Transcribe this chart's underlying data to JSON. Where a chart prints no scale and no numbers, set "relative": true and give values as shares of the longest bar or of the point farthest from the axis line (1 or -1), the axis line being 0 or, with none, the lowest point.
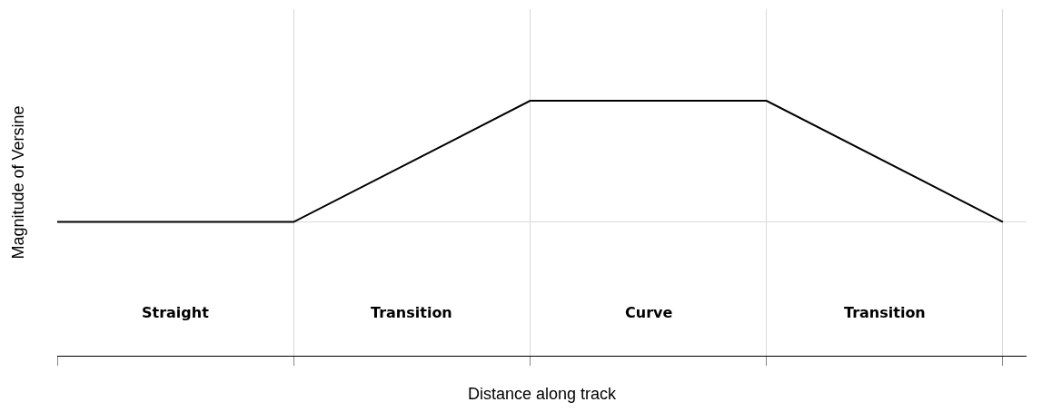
{
  "chart_data": {
    "type": "line",
    "relative": true,
    "xlabel": "Distance along track",
    "ylabel": "Magnitude of Versine",
    "categories": [
      null,
      null,
      null,
      null,
      null
    ],
    "series": [
      {
        "color": "#000000",
        "values": [
          0.525,
          0.525,
          1,
          1,
          0.525
        ]
      }
    ],
    "annotations": [
      "Straight",
      "Transition",
      "Curve",
      "Transition"
    ],
    "ref_lines": [
      {
        "axis": "y",
        "value": 0.525,
        "color": "#d9d9d9"
      }
    ],
    "grid": "x",
    "marker": "none",
    "line_style": "solid"
  }
}
